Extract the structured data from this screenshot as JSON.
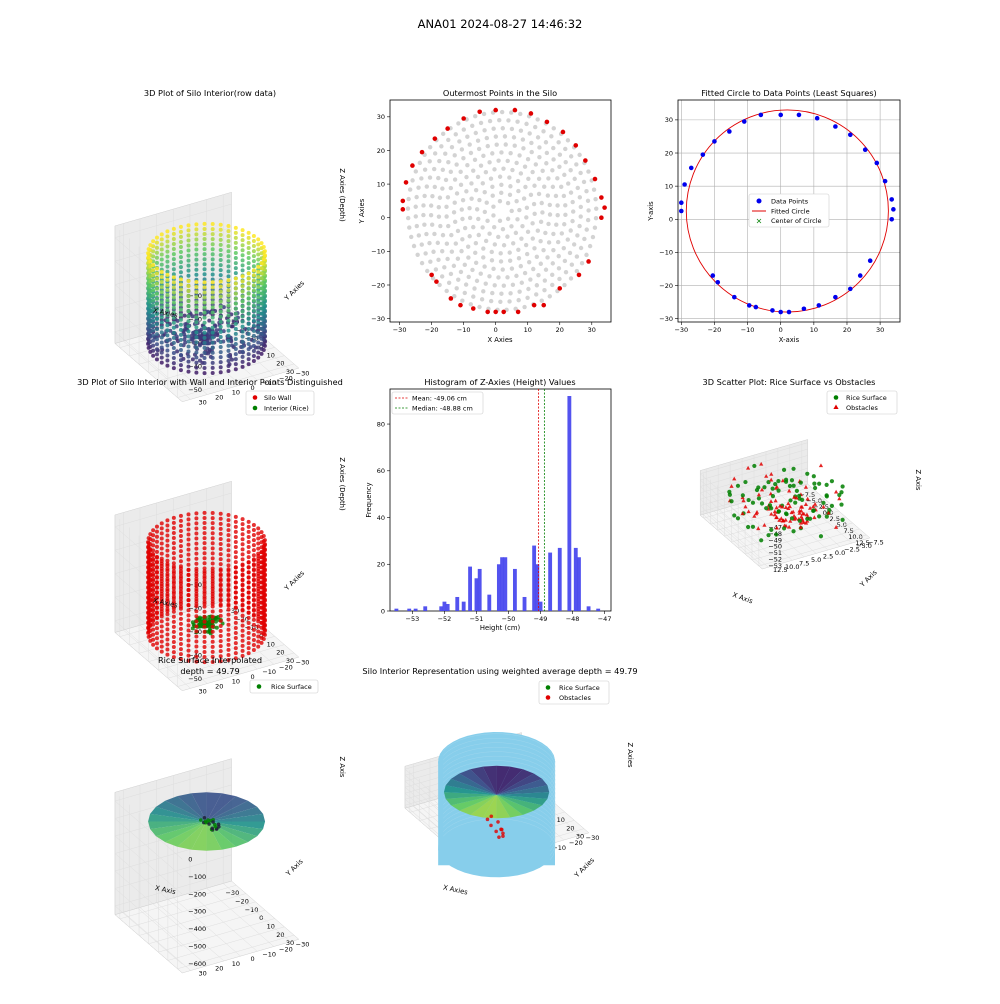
{
  "suptitle": "ANA01 2024-08-27 14:46:32",
  "colors": {
    "gray": "#d3d3d3",
    "red": "#e00000",
    "blue": "#0000ee",
    "green": "#007f00",
    "hist": "#4a4aee",
    "skyblue": "#87ceeb",
    "viridis": [
      "#440154",
      "#3b528b",
      "#21918c",
      "#5ec962",
      "#fde725"
    ]
  },
  "panels": {
    "p1": {
      "title": "3D Plot of Silo Interior(row data)",
      "xlabel": "X Axies",
      "ylabel": "Y Axies",
      "zlabel": "Z Axies (Depth)",
      "xticks": [
        "−30",
        "−20",
        "−10",
        "0",
        "10",
        "20",
        "30"
      ],
      "yticks": [
        "30",
        "20",
        "10",
        "0",
        "−10",
        "−20",
        "−30"
      ],
      "zticks": [
        "−10",
        "−20",
        "−30",
        "−40",
        "−50"
      ]
    },
    "p2": {
      "title": "Outermost Points in the Silo",
      "xlabel": "X Axies",
      "ylabel": "Y Axies",
      "xticks": [
        "−30",
        "−20",
        "−10",
        "0",
        "10",
        "20",
        "30"
      ],
      "yticks": [
        "30",
        "20",
        "10",
        "0",
        "−10",
        "−20",
        "−30"
      ]
    },
    "p3": {
      "title": "Fitted Circle to Data Points (Least Squares)",
      "xlabel": "X-axis",
      "ylabel": "Y-axis",
      "xticks": [
        "−30",
        "−20",
        "−10",
        "0",
        "10",
        "20",
        "30"
      ],
      "yticks": [
        "30",
        "20",
        "10",
        "0",
        "−10",
        "−20",
        "−30"
      ],
      "legend": [
        "Data Points",
        "Fitted Circle",
        "Center of Circle"
      ]
    },
    "p4": {
      "title": "3D Plot of Silo Interior with Wall and Interior Points Distinguished",
      "xlabel": "X Axies",
      "ylabel": "Y Axies",
      "zlabel": "Z Axies (Depth)",
      "xticks": [
        "−30",
        "−20",
        "−10",
        "0",
        "10",
        "20",
        "30"
      ],
      "yticks": [
        "30",
        "20",
        "10",
        "0",
        "−10",
        "−20",
        "−30"
      ],
      "zticks": [
        "−10",
        "−20",
        "−30",
        "−40",
        "−50"
      ],
      "legend": [
        "Silo Wall",
        "Interior (Rice)"
      ]
    },
    "p5": {
      "title": "Histogram of Z-Axies (Height) Values",
      "xlabel": "Height (cm)",
      "ylabel": "Frequency",
      "xticks": [
        "−53",
        "−52",
        "−51",
        "−50",
        "−49",
        "−48",
        "−47"
      ],
      "yticks": [
        "0",
        "20",
        "40",
        "60",
        "80"
      ],
      "legend": [
        "Mean: -49.06 cm",
        "Median: -48.88 cm"
      ]
    },
    "p6": {
      "title": "3D Scatter Plot: Rice Surface vs Obstacles",
      "xlabel": "X Axis",
      "ylabel": "Y Axis",
      "zlabel": "Z Axis",
      "xticks": [
        "−7.5",
        "−5.0",
        "−2.5",
        "0.0",
        "2.5",
        "5.0",
        "7.5",
        "10.0",
        "12.5"
      ],
      "yticks": [
        "12.5",
        "10.0",
        "7.5",
        "5.0",
        "2.5",
        "0.0",
        "−2.5",
        "−5.0",
        "−7.5"
      ],
      "zticks": [
        "−47",
        "−48",
        "−49",
        "−50",
        "−51",
        "−52",
        "−53"
      ],
      "legend": [
        "Rice Surface",
        "Obstacles"
      ]
    },
    "p7": {
      "title": "Rice Surface Interpolated",
      "subtitle": "depth = 49.79",
      "xlabel": "X Axis",
      "ylabel": "Y Axis",
      "zlabel": "Z Axis",
      "xticks": [
        "−30",
        "−20",
        "−10",
        "0",
        "10",
        "20",
        "30"
      ],
      "yticks": [
        "30",
        "20",
        "10",
        "0",
        "−10",
        "−20",
        "−30"
      ],
      "zticks": [
        "0",
        "−100",
        "−200",
        "−300",
        "−400",
        "−500",
        "−600"
      ],
      "legend": [
        "Rice Surface"
      ]
    },
    "p8": {
      "title": "Silo Interior Representation using weighted average depth = 49.79",
      "xlabel": "X Axies",
      "ylabel": "Y Axies",
      "zlabel": "Z Axies",
      "xticks": [
        "−30",
        "−20",
        "−10",
        "0",
        "10",
        "20",
        "30"
      ],
      "yticks": [
        "30",
        "20",
        "10",
        "0",
        "−10",
        "−20",
        "−30"
      ],
      "zticks": [
        "−47",
        "−48",
        "−49",
        "−50",
        "−51",
        "−52",
        "−53"
      ],
      "legend": [
        "Rice Surface",
        "Obstacles"
      ]
    }
  },
  "chart_data": [
    {
      "id": "p2",
      "type": "scatter",
      "xlim": [
        -33,
        36
      ],
      "ylim": [
        -31,
        35
      ],
      "series": [
        {
          "name": "",
          "points": [
            [
              -29,
              5
            ],
            [
              -29,
              2.5
            ],
            [
              -28,
              10.5
            ],
            [
              -26,
              15.5
            ],
            [
              -23,
              19.5
            ],
            [
              -19,
              23.5
            ],
            [
              -15,
              26.5
            ],
            [
              -10,
              29.5
            ],
            [
              -5,
              31.5
            ],
            [
              0,
              32
            ],
            [
              6,
              32
            ],
            [
              11,
              31
            ],
            [
              16,
              28.5
            ],
            [
              21,
              25.5
            ],
            [
              25,
              21.5
            ],
            [
              28,
              17
            ],
            [
              31,
              11.5
            ],
            [
              33,
              6
            ],
            [
              34,
              3
            ],
            [
              33,
              0
            ],
            [
              29,
              -13
            ],
            [
              26,
              -17
            ],
            [
              20,
              -21
            ],
            [
              15,
              -26
            ],
            [
              12,
              -26
            ],
            [
              7,
              -28
            ],
            [
              2.5,
              -28
            ],
            [
              0,
              -28
            ],
            [
              -2.5,
              -28
            ],
            [
              -7,
              -27
            ],
            [
              -11,
              -26
            ],
            [
              -14,
              -24
            ],
            [
              -18.5,
              -19
            ],
            [
              -20,
              -17
            ]
          ]
        }
      ]
    },
    {
      "id": "p3",
      "type": "scatter",
      "xlim": [
        -31,
        36
      ],
      "ylim": [
        -31,
        36
      ],
      "circle": {
        "center": [
          2,
          2.5
        ],
        "radius": 30.5
      },
      "series": [
        {
          "name": "Data Points",
          "points": [
            [
              -30,
              5
            ],
            [
              -30,
              2.5
            ],
            [
              -29,
              10.5
            ],
            [
              -27,
              15.5
            ],
            [
              -23.5,
              19.5
            ],
            [
              -20,
              23.5
            ],
            [
              -15.5,
              26.5
            ],
            [
              -11,
              29.5
            ],
            [
              -6,
              31.5
            ],
            [
              0,
              31.5
            ],
            [
              5.5,
              31.5
            ],
            [
              11,
              30.5
            ],
            [
              16.5,
              28
            ],
            [
              21,
              25.5
            ],
            [
              25.5,
              21
            ],
            [
              29,
              17
            ],
            [
              31.5,
              11.5
            ],
            [
              33.5,
              6
            ],
            [
              34,
              3
            ],
            [
              33.5,
              0
            ],
            [
              27,
              -12.5
            ],
            [
              24,
              -17
            ],
            [
              21,
              -21
            ],
            [
              16.5,
              -23.5
            ],
            [
              11.5,
              -26
            ],
            [
              7,
              -27
            ],
            [
              2.5,
              -28
            ],
            [
              0,
              -28
            ],
            [
              -2.5,
              -27.5
            ],
            [
              -7.5,
              -26.5
            ],
            [
              -9.5,
              -26
            ],
            [
              -14,
              -23.5
            ],
            [
              -19,
              -19
            ],
            [
              -20.5,
              -17
            ]
          ]
        }
      ]
    },
    {
      "id": "p5",
      "type": "bar",
      "xlim": [
        -53.7,
        -46.8
      ],
      "ylim": [
        0,
        95
      ],
      "mean": -49.06,
      "median": -48.88,
      "bins": [
        [
          -53.5,
          1
        ],
        [
          -53.1,
          1
        ],
        [
          -52.9,
          1
        ],
        [
          -52.6,
          2
        ],
        [
          -52.1,
          2
        ],
        [
          -52.0,
          4
        ],
        [
          -51.9,
          3
        ],
        [
          -51.6,
          6
        ],
        [
          -51.4,
          4
        ],
        [
          -51.2,
          19
        ],
        [
          -51.0,
          14
        ],
        [
          -50.9,
          18
        ],
        [
          -50.6,
          7
        ],
        [
          -50.3,
          20
        ],
        [
          -50.2,
          23
        ],
        [
          -50.1,
          23
        ],
        [
          -49.8,
          18
        ],
        [
          -49.5,
          6
        ],
        [
          -49.2,
          28
        ],
        [
          -49.1,
          20
        ],
        [
          -49.0,
          4
        ],
        [
          -48.7,
          25
        ],
        [
          -48.4,
          27
        ],
        [
          -48.1,
          92
        ],
        [
          -47.9,
          27
        ],
        [
          -47.8,
          23
        ],
        [
          -47.5,
          2
        ],
        [
          -47.2,
          1
        ]
      ]
    }
  ]
}
